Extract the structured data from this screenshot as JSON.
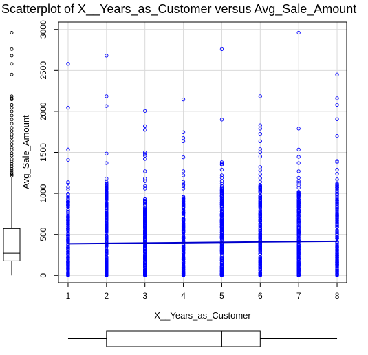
{
  "chart_data": {
    "type": "scatter",
    "title": "Scatterplot of X__Years_as_Customer versus Avg_Sale_Amount",
    "xlabel": "X__Years_as_Customer",
    "ylabel": "Avg_Sale_Amount",
    "xlim": [
      0.75,
      8.25
    ],
    "ylim": [
      -90,
      3090
    ],
    "x_ticks": [
      "1",
      "2",
      "3",
      "4",
      "5",
      "6",
      "7",
      "8"
    ],
    "y_ticks": [
      "0",
      "500",
      "1000",
      "1500",
      "2000",
      "2500",
      "3000"
    ],
    "grid": true,
    "point_color": "#0000FF",
    "line_color": "#0000CC",
    "regression_line": {
      "x": [
        1,
        8
      ],
      "y": [
        385,
        415
      ]
    },
    "series": [
      {
        "points": [
          [
            1,
            2580
          ],
          [
            1,
            2045
          ],
          [
            1,
            1535
          ],
          [
            1,
            1410
          ],
          [
            1,
            1140
          ],
          [
            1,
            1125
          ],
          [
            1,
            1075
          ],
          [
            1,
            1050
          ],
          [
            2,
            2680
          ],
          [
            2,
            2185
          ],
          [
            2,
            2065
          ],
          [
            2,
            1485
          ],
          [
            2,
            1370
          ],
          [
            2,
            1180
          ],
          [
            2,
            1140
          ],
          [
            2,
            1100
          ],
          [
            2,
            1060
          ],
          [
            3,
            2005
          ],
          [
            3,
            1820
          ],
          [
            3,
            1775
          ],
          [
            3,
            1500
          ],
          [
            3,
            1480
          ],
          [
            3,
            1460
          ],
          [
            3,
            1420
          ],
          [
            3,
            1270
          ],
          [
            3,
            1180
          ],
          [
            3,
            1150
          ],
          [
            3,
            1090
          ],
          [
            3,
            1060
          ],
          [
            4,
            2145
          ],
          [
            4,
            1745
          ],
          [
            4,
            1675
          ],
          [
            4,
            1635
          ],
          [
            4,
            1440
          ],
          [
            4,
            1270
          ],
          [
            4,
            1220
          ],
          [
            4,
            1140
          ],
          [
            4,
            1110
          ],
          [
            4,
            1090
          ],
          [
            4,
            1060
          ],
          [
            5,
            2760
          ],
          [
            5,
            1900
          ],
          [
            5,
            1380
          ],
          [
            5,
            1360
          ],
          [
            5,
            1350
          ],
          [
            5,
            1290
          ],
          [
            5,
            1220
          ],
          [
            5,
            1190
          ],
          [
            5,
            1150
          ],
          [
            5,
            1120
          ],
          [
            5,
            1090
          ],
          [
            5,
            1070
          ],
          [
            6,
            2185
          ],
          [
            6,
            1830
          ],
          [
            6,
            1790
          ],
          [
            6,
            1725
          ],
          [
            6,
            1635
          ],
          [
            6,
            1540
          ],
          [
            6,
            1500
          ],
          [
            6,
            1450
          ],
          [
            6,
            1320
          ],
          [
            6,
            1280
          ],
          [
            6,
            1230
          ],
          [
            6,
            1185
          ],
          [
            6,
            1140
          ],
          [
            6,
            1100
          ],
          [
            6,
            1070
          ],
          [
            7,
            2960
          ],
          [
            7,
            1790
          ],
          [
            7,
            1535
          ],
          [
            7,
            1445
          ],
          [
            7,
            1370
          ],
          [
            7,
            1270
          ],
          [
            7,
            1190
          ],
          [
            7,
            1150
          ],
          [
            7,
            1130
          ],
          [
            7,
            1100
          ],
          [
            7,
            1070
          ],
          [
            8,
            2450
          ],
          [
            8,
            2160
          ],
          [
            8,
            2080
          ],
          [
            8,
            1905
          ],
          [
            8,
            1700
          ],
          [
            8,
            1395
          ],
          [
            8,
            1380
          ],
          [
            8,
            1290
          ],
          [
            8,
            1240
          ],
          [
            8,
            1170
          ],
          [
            8,
            1120
          ],
          [
            8,
            1070
          ],
          [
            8,
            1045
          ],
          [
            8,
            1020
          ]
        ],
        "dense_upper": [
          1000,
          1130,
          935,
          960,
          1085,
          1100,
          1020,
          1130,
          1000
        ]
      }
    ],
    "marginal_y_boxplot": {
      "min": 0,
      "q1": 175,
      "median": 270,
      "q3": 570,
      "whisker_high": 1200,
      "outliers": [
        1215,
        1230,
        1250,
        1275,
        1300,
        1330,
        1360,
        1390,
        1420,
        1460,
        1490,
        1530,
        1560,
        1600,
        1640,
        1680,
        1720,
        1760,
        1800,
        1850,
        1900,
        1950,
        2000,
        2045,
        2080,
        2145,
        2160,
        2185,
        2450,
        2580,
        2680,
        2760,
        2960
      ]
    },
    "marginal_x_boxplot": {
      "min": 1,
      "q1": 2,
      "median": 5,
      "q3": 6,
      "max": 8
    }
  }
}
